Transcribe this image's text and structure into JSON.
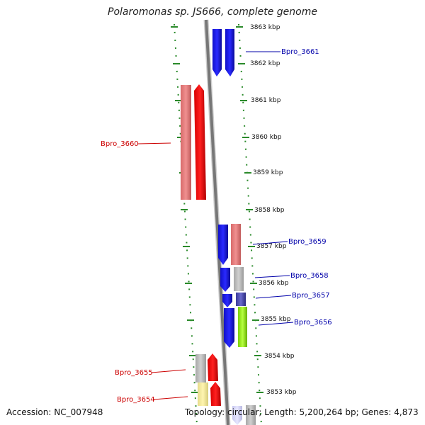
{
  "title": "Polaromonas sp. JS666, complete genome",
  "accession": "Accession: NC_007948",
  "summary": "Topology: circular; Length: 5,200,264 bp; Genes: 4,873",
  "colors": {
    "forward_label": "#cc0000",
    "reverse_label": "#0000aa",
    "backbone": "#777777",
    "ticks": "#2a8a2a"
  },
  "kbp_labels": [
    "3863 kbp",
    "3862 kbp",
    "3861 kbp",
    "3860 kbp",
    "3859 kbp",
    "3858 kbp",
    "3857 kbp",
    "3856 kbp",
    "3855 kbp",
    "3854 kbp",
    "3853 kbp"
  ],
  "gene_labels_left": [
    "Bpro_3660",
    "Bpro_3655",
    "Bpro_3654"
  ],
  "gene_labels_right": [
    "Bpro_3661",
    "Bpro_3659",
    "Bpro_3658",
    "Bpro_3657",
    "Bpro_3656"
  ]
}
